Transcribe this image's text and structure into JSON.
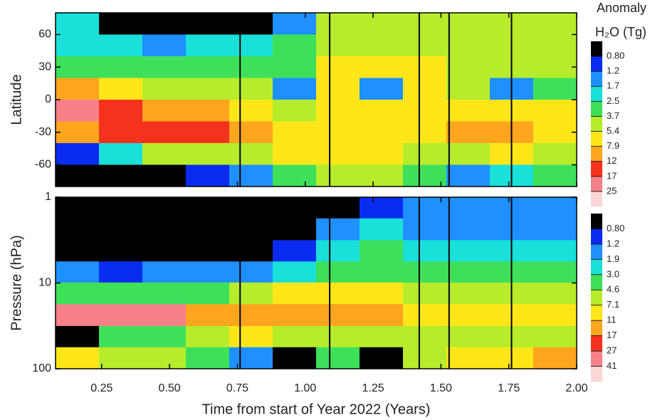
{
  "chart_data": [
    {
      "type": "heatmap",
      "ylabel": "Latitude",
      "legend_title": [
        "Anomaly",
        "H₂O (Tg)"
      ],
      "xlim": [
        0.08,
        2.0
      ],
      "xticks": [
        0.25,
        {
          "value": 0.5,
          "label": "0.50"
        },
        0.75,
        {
          "value": 1,
          "label": "1.00"
        },
        1.25,
        {
          "value": 1.5,
          "label": "1.50"
        },
        1.75,
        {
          "value": 2,
          "label": "2.00"
        }
      ],
      "ylim": [
        -80,
        80
      ],
      "yticks": [
        -60,
        -30,
        0,
        30,
        60
      ],
      "x": [
        0.16,
        0.32,
        0.48,
        0.64,
        0.8,
        0.96,
        1.12,
        1.28,
        1.44,
        1.6,
        1.76,
        1.92
      ],
      "y": [
        70,
        50,
        30,
        10,
        -10,
        -30,
        -50,
        -70
      ],
      "z": [
        [
          2,
          0.6,
          0.5,
          0.5,
          0.6,
          1.5,
          4,
          4.5,
          4.5,
          4,
          4,
          4
        ],
        [
          1.8,
          1.8,
          1.5,
          2,
          2,
          3,
          5,
          5,
          5,
          4.5,
          4.5,
          4.5
        ],
        [
          3,
          3,
          3,
          3,
          3.5,
          3,
          5.5,
          5.5,
          5.5,
          5,
          4.5,
          4.5
        ],
        [
          8,
          6,
          5,
          4.5,
          4.5,
          1.5,
          6,
          1.2,
          6,
          5,
          1.5,
          3
        ],
        [
          20,
          14,
          10,
          8,
          6,
          5,
          6,
          6,
          6,
          6,
          6,
          6
        ],
        [
          9,
          12,
          13,
          13,
          9,
          6,
          6,
          6.5,
          7,
          8,
          8,
          7
        ],
        [
          1,
          2,
          4,
          5,
          5,
          6,
          6,
          6,
          5,
          5,
          5.5,
          5
        ],
        [
          0.5,
          0.5,
          0.6,
          1,
          1.5,
          3,
          4,
          4,
          2.5,
          1.5,
          2,
          3
        ]
      ],
      "vlines": [
        0.76,
        1.09,
        1.42,
        1.53,
        1.76
      ],
      "colorbar": {
        "ticks": [
          {
            "value": 0.8,
            "label": "0.80"
          },
          1.2,
          1.7,
          2.5,
          3.7,
          5.4,
          7.9,
          12,
          17,
          25
        ],
        "colors": [
          "#000000",
          "#0a2cf0",
          "#1e90ff",
          "#19e0d8",
          "#3ee05a",
          "#b6ec2c",
          "#ffe619",
          "#ffa51e",
          "#f4321e",
          "#f7818a",
          "#fcd6d6"
        ]
      }
    },
    {
      "type": "heatmap",
      "ylabel": "Pressure (hPa)",
      "xlabel": "Time from start of Year 2022 (Years)",
      "xlim": [
        0.08,
        2.0
      ],
      "xticks": [
        0.25,
        {
          "value": 0.5,
          "label": "0.50"
        },
        0.75,
        {
          "value": 1,
          "label": "1.00"
        },
        1.25,
        {
          "value": 1.5,
          "label": "1.50"
        },
        1.75,
        {
          "value": 2,
          "label": "2.00"
        }
      ],
      "ylim": [
        100,
        1
      ],
      "log_y": true,
      "yticks": [
        1,
        10,
        100
      ],
      "x": [
        0.16,
        0.32,
        0.48,
        0.64,
        0.8,
        0.96,
        1.12,
        1.28,
        1.44,
        1.6,
        1.76,
        1.92
      ],
      "y": [
        1.3,
        2.4,
        4.2,
        7.5,
        13,
        24,
        42,
        75
      ],
      "z": [
        [
          0.5,
          0.5,
          0.5,
          0.5,
          0.5,
          0.5,
          0.5,
          0.8,
          1.2,
          1.2,
          1.2,
          1.2
        ],
        [
          0.5,
          0.5,
          0.5,
          0.5,
          0.5,
          0.6,
          1.5,
          2,
          1.5,
          1.5,
          1.5,
          1.5
        ],
        [
          0.6,
          0.6,
          0.5,
          0.5,
          0.6,
          1,
          2.5,
          3,
          2.5,
          2,
          2,
          2
        ],
        [
          1.2,
          1.0,
          1.2,
          1.5,
          1.5,
          2.5,
          4,
          4,
          4,
          3.5,
          3,
          3
        ],
        [
          3.5,
          4,
          4,
          4,
          5,
          8,
          10,
          8,
          7,
          6,
          6,
          6
        ],
        [
          30,
          40,
          35,
          15,
          15,
          13,
          13,
          13,
          10,
          9,
          9,
          9
        ],
        [
          0.5,
          3,
          3,
          7,
          8,
          7,
          7,
          7,
          6,
          6,
          6,
          6
        ],
        [
          9,
          7,
          5,
          3,
          1.5,
          0.7,
          3,
          0.7,
          5,
          8,
          10,
          13
        ]
      ],
      "vlines": [
        0.76,
        1.09,
        1.42,
        1.53,
        1.76
      ],
      "colorbar": {
        "ticks": [
          {
            "value": 0.8,
            "label": "0.80"
          },
          1.2,
          1.9,
          {
            "value": 3,
            "label": "3.0"
          },
          4.6,
          7.1,
          11,
          17,
          27,
          41
        ],
        "colors": [
          "#000000",
          "#0a2cf0",
          "#1e90ff",
          "#19e0d8",
          "#3ee05a",
          "#b6ec2c",
          "#ffe619",
          "#ffa51e",
          "#f4321e",
          "#f7818a",
          "#fcd6d6"
        ]
      }
    }
  ]
}
